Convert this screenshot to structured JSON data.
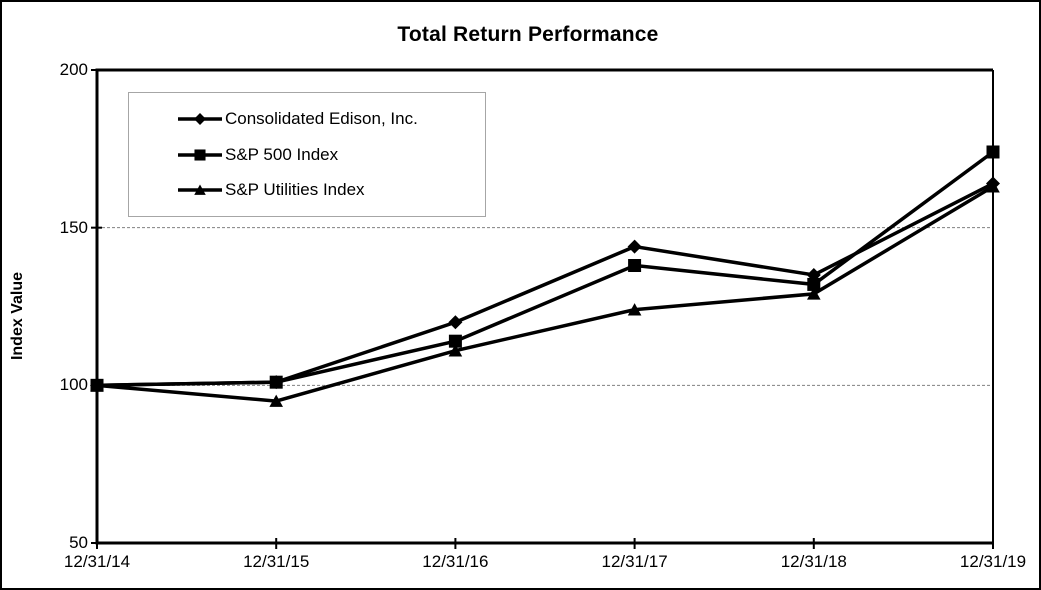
{
  "title": "Total Return Performance",
  "y_axis_label": "Index Value",
  "legend": {
    "items": [
      {
        "label": "Consolidated Edison, Inc.",
        "marker": "diamond"
      },
      {
        "label": "S&P 500 Index",
        "marker": "square"
      },
      {
        "label": "S&P Utilities Index",
        "marker": "triangle"
      }
    ]
  },
  "chart_data": {
    "type": "line",
    "title": "Total Return Performance",
    "xlabel": "",
    "ylabel": "Index Value",
    "categories": [
      "12/31/14",
      "12/31/15",
      "12/31/16",
      "12/31/17",
      "12/31/18",
      "12/31/19"
    ],
    "series": [
      {
        "name": "Consolidated Edison, Inc.",
        "marker": "diamond",
        "values": [
          100,
          101,
          120,
          144,
          135,
          164
        ]
      },
      {
        "name": "S&P 500 Index",
        "marker": "square",
        "values": [
          100,
          101,
          114,
          138,
          132,
          174
        ]
      },
      {
        "name": "S&P Utilities Index",
        "marker": "triangle",
        "values": [
          100,
          95,
          111,
          124,
          129,
          163
        ]
      }
    ],
    "ylim": [
      50,
      200
    ],
    "y_ticks": [
      50,
      100,
      150,
      200
    ],
    "gridline_values": [
      100,
      150
    ],
    "grid": "horizontal-dashed",
    "legend_position": "upper-left-inside",
    "line_color": "#000000",
    "gridline_color": "#808080",
    "draw_order": [
      2,
      0,
      1
    ]
  }
}
